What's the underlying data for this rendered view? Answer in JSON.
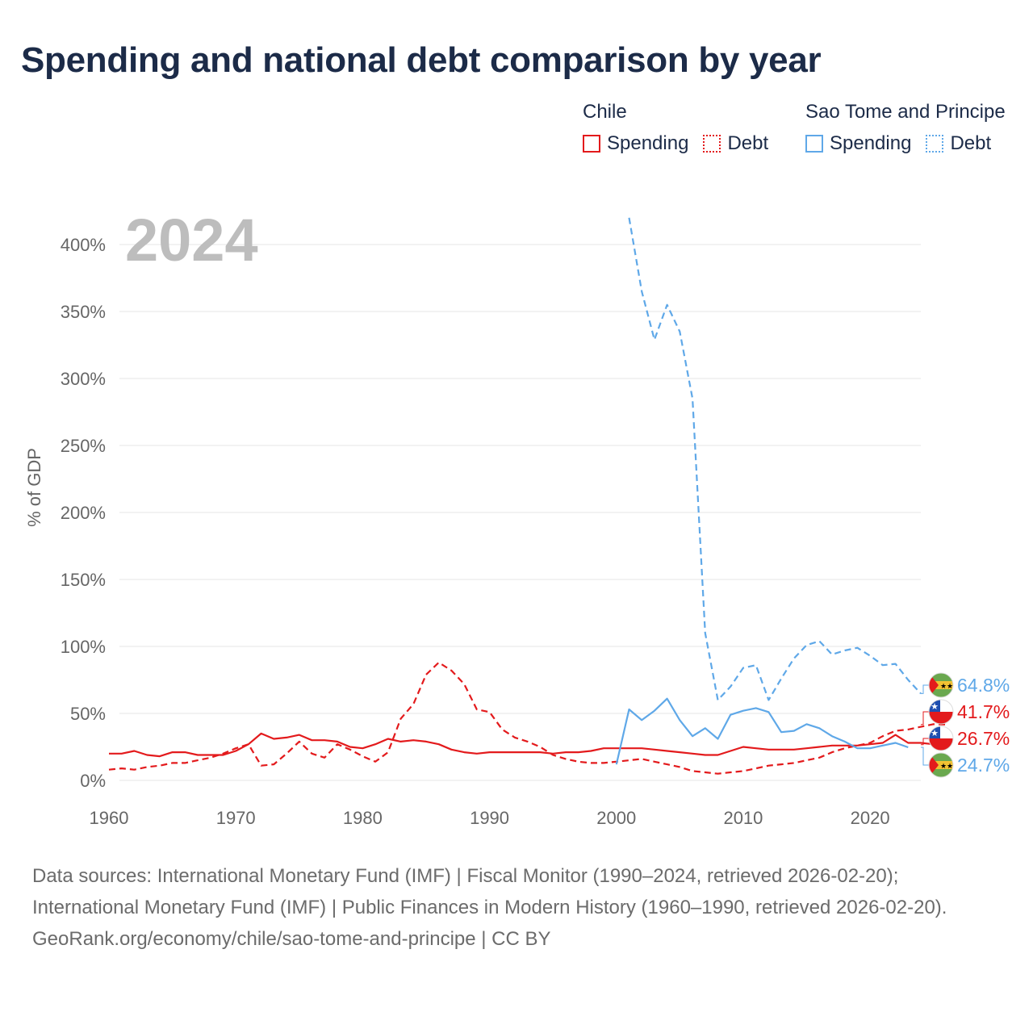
{
  "title": "Spending and national debt comparison by year",
  "year_label": "2024",
  "legend": {
    "groups": [
      {
        "name": "Chile",
        "color": "#e31a1c",
        "items": [
          {
            "label": "Spending",
            "style": "solid"
          },
          {
            "label": "Debt",
            "style": "dotted"
          }
        ]
      },
      {
        "name": "Sao Tome and Principe",
        "color": "#5fa8e8",
        "items": [
          {
            "label": "Spending",
            "style": "solid"
          },
          {
            "label": "Debt",
            "style": "dotted"
          }
        ]
      }
    ]
  },
  "chart_data": {
    "type": "line",
    "ylabel": "% of GDP",
    "xlim": [
      1960,
      2024
    ],
    "ylim": [
      0,
      420
    ],
    "yticks": [
      0,
      50,
      100,
      150,
      200,
      250,
      300,
      350,
      400
    ],
    "ytick_labels": [
      "0%",
      "50%",
      "100%",
      "150%",
      "200%",
      "250%",
      "300%",
      "350%",
      "400%"
    ],
    "xticks": [
      1960,
      1970,
      1980,
      1990,
      2000,
      2010,
      2020
    ],
    "xtick_labels": [
      "1960",
      "1970",
      "1980",
      "1990",
      "2000",
      "2010",
      "2020"
    ],
    "series": [
      {
        "name": "Chile Spending",
        "country": "Chile",
        "metric": "Spending",
        "color": "#e31a1c",
        "dash": "solid",
        "start_year": 1960,
        "end_label": "26.7%",
        "values": [
          20,
          20,
          22,
          19,
          18,
          21,
          21,
          19,
          19,
          19,
          22,
          27,
          35,
          31,
          32,
          34,
          30,
          30,
          29,
          25,
          24,
          27,
          31,
          29,
          30,
          29,
          27,
          23,
          21,
          20,
          21,
          21,
          21,
          21,
          21,
          20,
          21,
          21,
          22,
          24,
          24,
          24,
          24,
          23,
          22,
          21,
          20,
          19,
          19,
          22,
          25,
          24,
          23,
          23,
          23,
          24,
          25,
          26,
          26,
          26,
          27,
          28,
          34,
          28,
          28,
          27,
          26.7
        ]
      },
      {
        "name": "Chile Debt",
        "country": "Chile",
        "metric": "Debt",
        "color": "#e31a1c",
        "dash": "dashed",
        "start_year": 1960,
        "end_label": "41.7%",
        "values": [
          8,
          9,
          8,
          10,
          11,
          13,
          13,
          15,
          17,
          20,
          24,
          27,
          11,
          12,
          20,
          29,
          20,
          17,
          27,
          23,
          18,
          14,
          21,
          46,
          57,
          79,
          88,
          82,
          72,
          53,
          51,
          38,
          32,
          29,
          25,
          19,
          16,
          14,
          13,
          13,
          14,
          15,
          16,
          14,
          12,
          10,
          7,
          6,
          5,
          6,
          7,
          9,
          11,
          12,
          13,
          15,
          17,
          21,
          24,
          26,
          28,
          33,
          37,
          38,
          40,
          42,
          41.7
        ]
      },
      {
        "name": "Sao Tome and Principe Spending",
        "country": "Sao Tome and Principe",
        "metric": "Spending",
        "color": "#5fa8e8",
        "dash": "solid",
        "start_year": 2000,
        "end_label": "24.7%",
        "values": [
          12,
          53,
          45,
          52,
          61,
          45,
          33,
          39,
          31,
          49,
          52,
          54,
          51,
          36,
          37,
          42,
          39,
          33,
          29,
          24,
          24,
          26,
          28,
          24.7
        ]
      },
      {
        "name": "Sao Tome and Principe Debt",
        "country": "Sao Tome and Principe",
        "metric": "Debt",
        "color": "#5fa8e8",
        "dash": "dashed",
        "start_year": 2001,
        "end_label": "64.8%",
        "values": [
          420,
          365,
          329,
          355,
          335,
          285,
          110,
          60,
          70,
          84,
          86,
          60,
          76,
          91,
          101,
          104,
          94,
          97,
          99,
          93,
          86,
          87,
          75,
          64.8
        ]
      }
    ]
  },
  "footer": {
    "sources": "Data sources: International Monetary Fund (IMF) | Fiscal Monitor (1990–2024, retrieved 2026-02-20); International Monetary Fund (IMF) | Public Finances in Modern History (1960–1990, retrieved 2026-02-20).",
    "attribution": "GeoRank.org/economy/chile/sao-tome-and-principe | CC BY"
  }
}
